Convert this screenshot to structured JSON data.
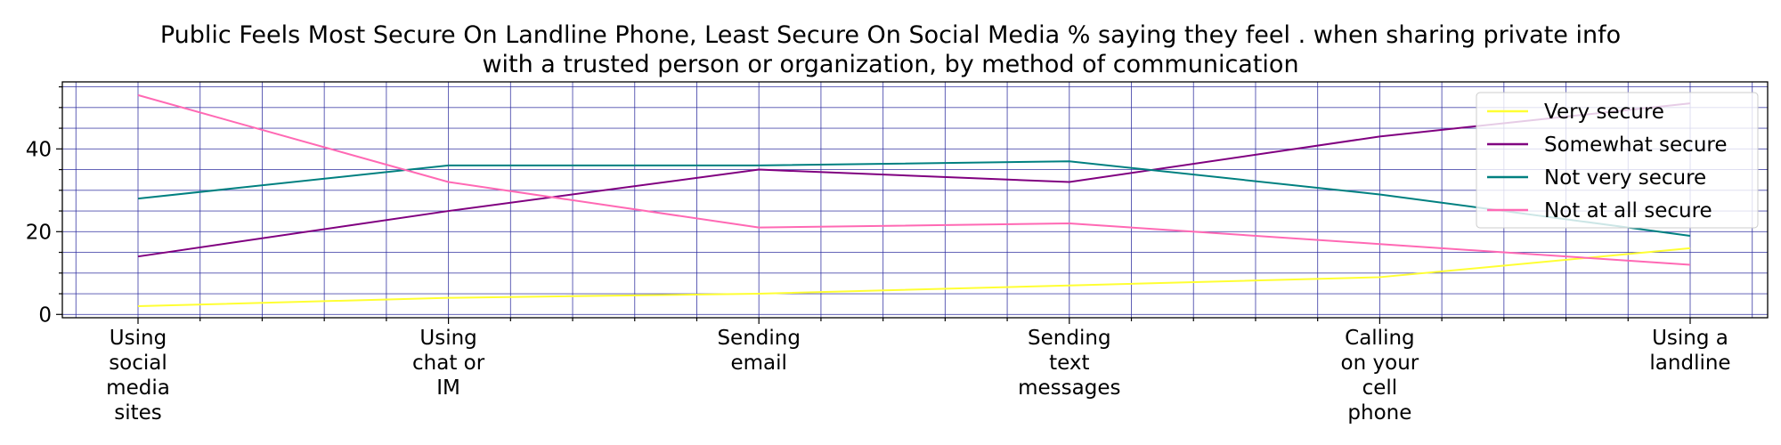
{
  "chart_data": {
    "type": "line",
    "title": "Public Feels Most Secure On Landline Phone, Least Secure On Social Media % saying they feel . when sharing private info with a trusted person or organization, by method of communication",
    "title_lines": [
      "Public Feels Most Secure On Landline Phone, Least Secure On Social Media % saying they feel . when sharing private info",
      "with a trusted person or organization, by method of communication"
    ],
    "xlabel": "",
    "ylabel": "",
    "categories": [
      [
        "Using",
        "social",
        "media",
        "sites"
      ],
      [
        "Using",
        "chat or",
        "IM"
      ],
      [
        "Sending",
        "email"
      ],
      [
        "Sending",
        "text",
        "messages"
      ],
      [
        "Calling",
        "on your",
        "cell",
        "phone"
      ],
      [
        "Using a",
        "landline"
      ]
    ],
    "ylim": [
      0,
      55
    ],
    "yticks": [
      0,
      20,
      40
    ],
    "grid": true,
    "grid_color": "#3030a0",
    "legend_position": "top-right",
    "series": [
      {
        "name": "Very secure",
        "color": "#ffff33",
        "values": [
          2,
          4,
          5,
          7,
          9,
          16
        ]
      },
      {
        "name": "Somewhat secure",
        "color": "#800080",
        "values": [
          14,
          25,
          35,
          32,
          43,
          51
        ]
      },
      {
        "name": "Not very secure",
        "color": "#008080",
        "values": [
          28,
          36,
          36,
          37,
          29,
          19
        ]
      },
      {
        "name": "Not at all secure",
        "color": "#ff69b4",
        "values": [
          53,
          32,
          21,
          22,
          17,
          12
        ]
      }
    ]
  }
}
